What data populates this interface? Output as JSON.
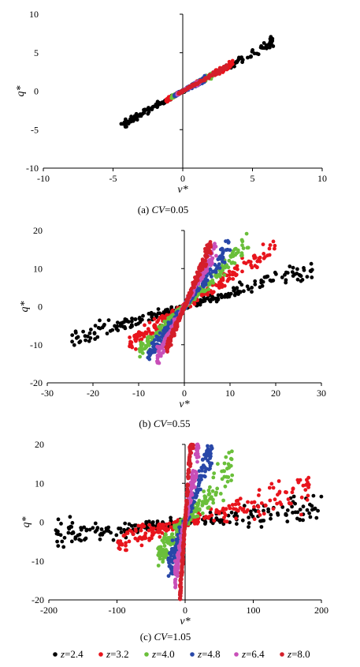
{
  "colors": {
    "axis": "#000000",
    "series": [
      "#000000",
      "#e8141c",
      "#6abf3a",
      "#2847a8",
      "#c84fb8",
      "#d41f2a"
    ]
  },
  "legend": {
    "items": [
      {
        "symbol": "●",
        "label": "z=2.4"
      },
      {
        "symbol": "●",
        "label": "z=3.2"
      },
      {
        "symbol": "●",
        "label": "z=4.0"
      },
      {
        "symbol": "●",
        "label": "z=4.8"
      },
      {
        "symbol": "●",
        "label": "z=6.4"
      },
      {
        "symbol": "●",
        "label": "z=8.0"
      }
    ]
  },
  "chart_data": [
    {
      "type": "scatter",
      "caption": "(a) CV=0.05",
      "caption_prefix": "(a) ",
      "caption_var": "CV",
      "caption_value": "=0.05",
      "xlabel": "v*",
      "ylabel": "q*",
      "xlim": [
        -10,
        10
      ],
      "ylim": [
        -10,
        10
      ],
      "xticks": [
        -10,
        -5,
        0,
        5,
        10
      ],
      "yticks": [
        -10,
        -5,
        0,
        5,
        10
      ],
      "series": [
        {
          "label": "z=2.4",
          "x_range": [
            -4.5,
            6.5
          ],
          "slope": 1.0,
          "spread": 0.35
        },
        {
          "label": "z=3.2",
          "x_range": [
            -1.2,
            3.6
          ],
          "slope": 1.0,
          "spread": 0.25
        },
        {
          "label": "z=4.0",
          "x_range": [
            -0.8,
            2.2
          ],
          "slope": 1.0,
          "spread": 0.2
        },
        {
          "label": "z=4.8",
          "x_range": [
            -0.6,
            1.6
          ],
          "slope": 1.0,
          "spread": 0.2
        },
        {
          "label": "z=6.4",
          "x_range": [
            -0.4,
            1.2
          ],
          "slope": 1.0,
          "spread": 0.15
        },
        {
          "label": "z=8.0",
          "x_range": [
            -0.3,
            3.2
          ],
          "slope": 1.0,
          "spread": 0.15
        }
      ]
    },
    {
      "type": "scatter",
      "caption": "(b) CV=0.55",
      "caption_prefix": "(b) ",
      "caption_var": "CV",
      "caption_value": "=0.55",
      "xlabel": "v*",
      "ylabel": "q*",
      "xlim": [
        -30,
        30
      ],
      "ylim": [
        -20,
        20
      ],
      "xticks": [
        -30,
        -20,
        -10,
        0,
        10,
        20,
        30
      ],
      "yticks": [
        -20,
        -10,
        0,
        10,
        20
      ],
      "series": [
        {
          "label": "z=2.4",
          "x_range": [
            -25,
            28
          ],
          "slope": 0.35,
          "spread": 1.5
        },
        {
          "label": "z=3.2",
          "x_range": [
            -12,
            20
          ],
          "slope": 0.8,
          "spread": 1.5
        },
        {
          "label": "z=4.0",
          "x_range": [
            -10,
            14
          ],
          "slope": 1.2,
          "spread": 1.5
        },
        {
          "label": "z=4.8",
          "x_range": [
            -8,
            10
          ],
          "slope": 1.6,
          "spread": 1.5
        },
        {
          "label": "z=6.4",
          "x_range": [
            -6,
            7
          ],
          "slope": 2.2,
          "spread": 1.2
        },
        {
          "label": "z=8.0",
          "x_range": [
            -4,
            6
          ],
          "slope": 2.8,
          "spread": 1.2
        }
      ]
    },
    {
      "type": "scatter",
      "caption": "(c) CV=1.05",
      "caption_prefix": "(c) ",
      "caption_var": "CV",
      "caption_value": "=1.05",
      "xlabel": "v*",
      "ylabel": "q*",
      "xlim": [
        -200,
        200
      ],
      "ylim": [
        -20,
        20
      ],
      "xticks": [
        -200,
        -100,
        0,
        100,
        200
      ],
      "yticks": [
        -20,
        -10,
        0,
        10,
        20
      ],
      "series": [
        {
          "label": "z=2.4",
          "x_range": [
            -190,
            200
          ],
          "slope": 0.02,
          "spread": 2.0
        },
        {
          "label": "z=3.2",
          "x_range": [
            -100,
            185
          ],
          "slope": 0.05,
          "spread": 2.5
        },
        {
          "label": "z=4.0",
          "x_range": [
            -40,
            70
          ],
          "slope": 0.2,
          "spread": 3.0
        },
        {
          "label": "z=4.8",
          "x_range": [
            -25,
            40
          ],
          "slope": 0.5,
          "spread": 3.0
        },
        {
          "label": "z=6.4",
          "x_range": [
            -15,
            20
          ],
          "slope": 1.0,
          "spread": 3.0
        },
        {
          "label": "z=8.0",
          "x_range": [
            -8,
            12
          ],
          "slope": 2.5,
          "spread": 3.0
        }
      ]
    }
  ]
}
